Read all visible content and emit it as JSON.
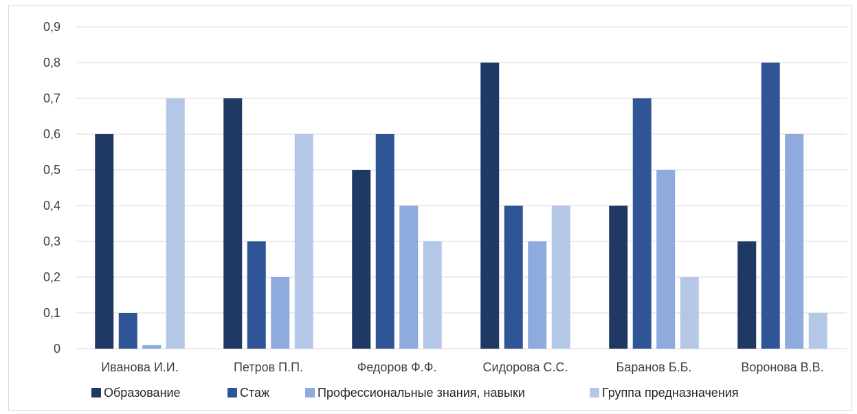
{
  "chart_data": {
    "type": "bar",
    "categories": [
      "Иванова И.И.",
      "Петров П.П.",
      "Федоров Ф.Ф.",
      "Сидорова С.С.",
      "Баранов Б.Б.",
      "Воронова В.В."
    ],
    "series": [
      {
        "name": "Образование",
        "color": "#203864",
        "values": [
          0.6,
          0.7,
          0.5,
          0.8,
          0.4,
          0.3
        ]
      },
      {
        "name": "Стаж",
        "color": "#2f5597",
        "values": [
          0.1,
          0.3,
          0.6,
          0.4,
          0.7,
          0.8
        ]
      },
      {
        "name": "Профессиональные знания, навыки",
        "color": "#8faadc",
        "values": [
          0.01,
          0.2,
          0.4,
          0.3,
          0.5,
          0.6
        ]
      },
      {
        "name": "Группа предназначения",
        "color": "#b4c7e7",
        "values": [
          0.7,
          0.6,
          0.3,
          0.4,
          0.2,
          0.1
        ]
      }
    ],
    "y_ticks": [
      "0",
      "0,1",
      "0,2",
      "0,3",
      "0,4",
      "0,5",
      "0,6",
      "0,7",
      "0,8",
      "0,9"
    ],
    "ylim": [
      0,
      0.9
    ],
    "grid": true,
    "legend_position": "bottom",
    "title": "",
    "xlabel": "",
    "ylabel": ""
  }
}
